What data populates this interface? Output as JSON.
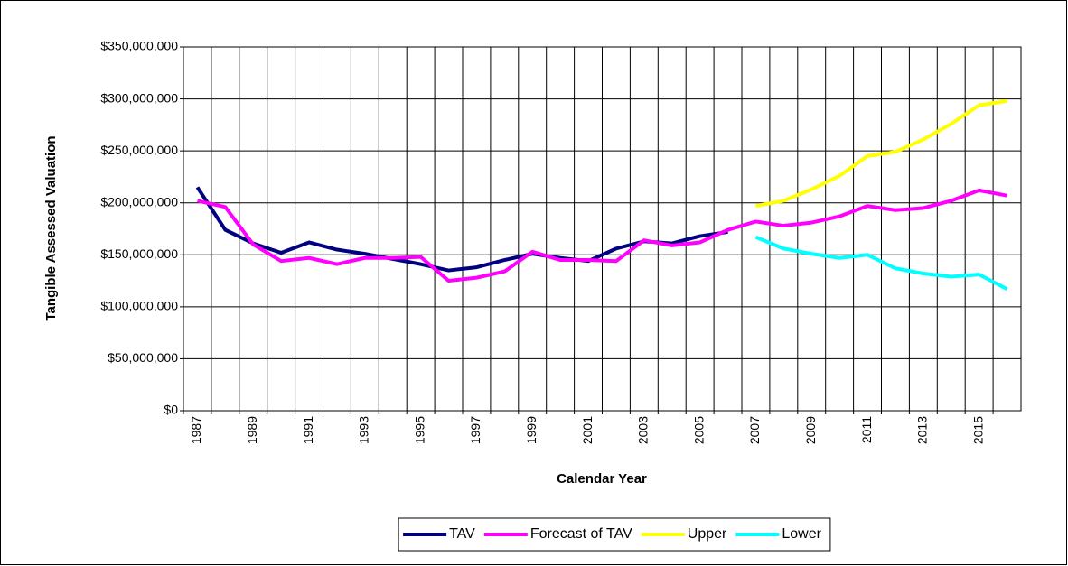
{
  "chart_data": {
    "type": "line",
    "x_label": "Calendar Year",
    "y_label": "Tangible Assessed Valuation",
    "categories": [
      "1987",
      null,
      "1989",
      null,
      "1991",
      null,
      "1993",
      null,
      "1995",
      null,
      "1997",
      null,
      "1999",
      null,
      "2001",
      null,
      "2003",
      null,
      "2005",
      null,
      "2007",
      null,
      "2009",
      null,
      "2011",
      null,
      "2013",
      null,
      "2015",
      null
    ],
    "series": [
      {
        "name": "TAV",
        "color": "#000080",
        "values": [
          215000000,
          174000000,
          161000000,
          152000000,
          162000000,
          155000000,
          151000000,
          146000000,
          141000000,
          135000000,
          138000000,
          145000000,
          151000000,
          147000000,
          144000000,
          156000000,
          163000000,
          161000000,
          168000000,
          172000000,
          null,
          null,
          null,
          null,
          null,
          null,
          null,
          null,
          null,
          null
        ]
      },
      {
        "name": "Forecast of TAV",
        "color": "#ff00ff",
        "values": [
          202000000,
          196000000,
          160000000,
          144000000,
          147000000,
          141000000,
          147000000,
          147000000,
          148000000,
          125000000,
          128000000,
          134000000,
          153000000,
          145000000,
          145000000,
          144000000,
          164000000,
          159000000,
          162000000,
          174000000,
          182000000,
          178000000,
          181000000,
          187000000,
          197000000,
          193000000,
          195000000,
          202000000,
          212000000,
          207000000
        ]
      },
      {
        "name": "Upper",
        "color": "#ffff00",
        "values": [
          null,
          null,
          null,
          null,
          null,
          null,
          null,
          null,
          null,
          null,
          null,
          null,
          null,
          null,
          null,
          null,
          null,
          null,
          null,
          null,
          197000000,
          202000000,
          213000000,
          226000000,
          245000000,
          249000000,
          261000000,
          276000000,
          294000000,
          298000000
        ]
      },
      {
        "name": "Lower",
        "color": "#00ffff",
        "values": [
          null,
          null,
          null,
          null,
          null,
          null,
          null,
          null,
          null,
          null,
          null,
          null,
          null,
          null,
          null,
          null,
          null,
          null,
          null,
          null,
          167000000,
          156000000,
          151000000,
          147000000,
          150000000,
          137000000,
          132000000,
          129000000,
          131000000,
          117000000
        ]
      }
    ],
    "ylim": [
      0,
      350000000
    ],
    "yticks": [
      {
        "value": 0,
        "label": "$0"
      },
      {
        "value": 50000000,
        "label": "$50,000,000"
      },
      {
        "value": 100000000,
        "label": "$100,000,000"
      },
      {
        "value": 150000000,
        "label": "$150,000,000"
      },
      {
        "value": 200000000,
        "label": "$200,000,000"
      },
      {
        "value": 250000000,
        "label": "$250,000,000"
      },
      {
        "value": 300000000,
        "label": "$300,000,000"
      },
      {
        "value": 350000000,
        "label": "$350,000,000"
      }
    ],
    "grid": true,
    "legend": "bottom"
  }
}
